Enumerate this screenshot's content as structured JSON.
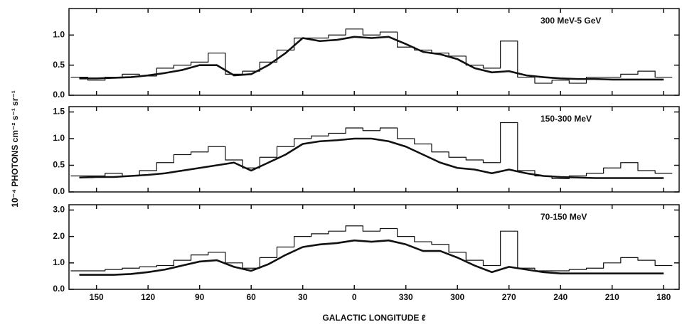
{
  "chart_data": [
    {
      "type": "line",
      "annotation": "300 MeV-5 GeV",
      "x": [
        160,
        150,
        140,
        130,
        120,
        110,
        100,
        90,
        80,
        70,
        60,
        50,
        40,
        30,
        20,
        10,
        0,
        -10,
        -20,
        -30,
        -40,
        -50,
        -60,
        -70,
        -80,
        -90,
        -100,
        -110,
        -120,
        -130,
        -140,
        -150,
        -160,
        -170,
        -180
      ],
      "xlim": [
        166,
        -189
      ],
      "ylim": [
        0,
        1.44
      ],
      "yticks": [
        {
          "value": 0,
          "label": "0.0"
        },
        0.5,
        {
          "value": 1,
          "label": "1.0"
        }
      ],
      "series": [
        {
          "color": "#111111",
          "style": "step",
          "values": [
            0.3,
            0.25,
            0.3,
            0.35,
            0.32,
            0.45,
            0.5,
            0.55,
            0.7,
            0.35,
            0.4,
            0.55,
            0.75,
            0.95,
            0.95,
            1.0,
            1.1,
            1.0,
            1.05,
            0.8,
            0.75,
            0.7,
            0.65,
            0.5,
            0.45,
            0.9,
            0.3,
            0.2,
            0.25,
            0.2,
            0.3,
            0.3,
            0.35,
            0.4,
            0.3
          ]
        },
        {
          "color": "#111111",
          "style": "smooth",
          "values": [
            0.28,
            0.28,
            0.29,
            0.3,
            0.33,
            0.37,
            0.42,
            0.5,
            0.5,
            0.33,
            0.35,
            0.5,
            0.7,
            0.95,
            0.9,
            0.92,
            0.97,
            0.95,
            0.97,
            0.85,
            0.72,
            0.68,
            0.6,
            0.45,
            0.38,
            0.4,
            0.33,
            0.3,
            0.28,
            0.27,
            0.27,
            0.26,
            0.26,
            0.26,
            0.26
          ]
        }
      ]
    },
    {
      "type": "line",
      "annotation": "150-300 MeV",
      "ylabel": "10⁻⁴ PHOTONS cm⁻² s⁻¹ sr⁻¹",
      "x": [
        160,
        150,
        140,
        130,
        120,
        110,
        100,
        90,
        80,
        70,
        60,
        50,
        40,
        30,
        20,
        10,
        0,
        -10,
        -20,
        -30,
        -40,
        -50,
        -60,
        -70,
        -80,
        -90,
        -100,
        -110,
        -120,
        -130,
        -140,
        -150,
        -160,
        -170,
        -180
      ],
      "xlim": [
        166,
        -189
      ],
      "ylim": [
        0,
        1.6
      ],
      "yticks": [
        {
          "value": 0,
          "label": "0.0"
        },
        0.5,
        {
          "value": 1,
          "label": "1.0"
        },
        1.5
      ],
      "series": [
        {
          "color": "#111111",
          "style": "step",
          "values": [
            0.3,
            0.3,
            0.35,
            0.3,
            0.4,
            0.55,
            0.7,
            0.75,
            0.85,
            0.6,
            0.45,
            0.65,
            0.85,
            1.0,
            1.05,
            1.1,
            1.2,
            1.15,
            1.2,
            1.0,
            0.9,
            0.75,
            0.65,
            0.6,
            0.55,
            1.3,
            0.4,
            0.3,
            0.25,
            0.3,
            0.35,
            0.45,
            0.55,
            0.4,
            0.35
          ]
        },
        {
          "color": "#111111",
          "style": "smooth",
          "values": [
            0.27,
            0.28,
            0.28,
            0.3,
            0.32,
            0.35,
            0.4,
            0.45,
            0.5,
            0.55,
            0.4,
            0.55,
            0.7,
            0.9,
            0.95,
            0.97,
            1.0,
            1.0,
            0.95,
            0.85,
            0.7,
            0.55,
            0.45,
            0.42,
            0.35,
            0.42,
            0.35,
            0.3,
            0.28,
            0.27,
            0.26,
            0.26,
            0.26,
            0.26,
            0.26
          ]
        }
      ]
    },
    {
      "type": "line",
      "annotation": "70-150 MeV",
      "xlabel": "GALACTIC LONGITUDE ℓ",
      "x": [
        160,
        150,
        140,
        130,
        120,
        110,
        100,
        90,
        80,
        70,
        60,
        50,
        40,
        30,
        20,
        10,
        0,
        -10,
        -20,
        -30,
        -40,
        -50,
        -60,
        -70,
        -80,
        -90,
        -100,
        -110,
        -120,
        -130,
        -140,
        -150,
        -160,
        -170,
        -180
      ],
      "xlim": [
        166,
        -189
      ],
      "xticks": [
        150,
        120,
        90,
        60,
        30,
        0,
        {
          "value": -30,
          "label": "330"
        },
        {
          "value": -60,
          "label": "300"
        },
        {
          "value": -90,
          "label": "270"
        },
        {
          "value": -120,
          "label": "240"
        },
        {
          "value": -150,
          "label": "210"
        },
        {
          "value": -180,
          "label": "180"
        }
      ],
      "ylim": [
        0,
        3.2
      ],
      "yticks": [
        {
          "value": 0,
          "label": "0.0"
        },
        {
          "value": 1,
          "label": "1.0"
        },
        {
          "value": 2,
          "label": "2.0"
        },
        {
          "value": 3,
          "label": "3.0"
        }
      ],
      "series": [
        {
          "color": "#111111",
          "style": "step",
          "values": [
            0.7,
            0.7,
            0.75,
            0.8,
            0.85,
            0.9,
            1.1,
            1.3,
            1.4,
            1.0,
            0.8,
            1.2,
            1.6,
            2.0,
            2.1,
            2.2,
            2.4,
            2.2,
            2.3,
            2.0,
            1.8,
            1.7,
            1.4,
            1.1,
            0.9,
            2.2,
            0.8,
            0.7,
            0.7,
            0.75,
            0.8,
            1.0,
            1.2,
            1.1,
            0.9
          ]
        },
        {
          "color": "#111111",
          "style": "smooth",
          "values": [
            0.55,
            0.55,
            0.55,
            0.58,
            0.65,
            0.75,
            0.9,
            1.05,
            1.1,
            0.85,
            0.7,
            0.95,
            1.3,
            1.6,
            1.7,
            1.75,
            1.85,
            1.8,
            1.85,
            1.7,
            1.45,
            1.45,
            1.2,
            0.9,
            0.65,
            0.85,
            0.75,
            0.65,
            0.6,
            0.6,
            0.6,
            0.6,
            0.6,
            0.6,
            0.6
          ]
        }
      ]
    }
  ]
}
